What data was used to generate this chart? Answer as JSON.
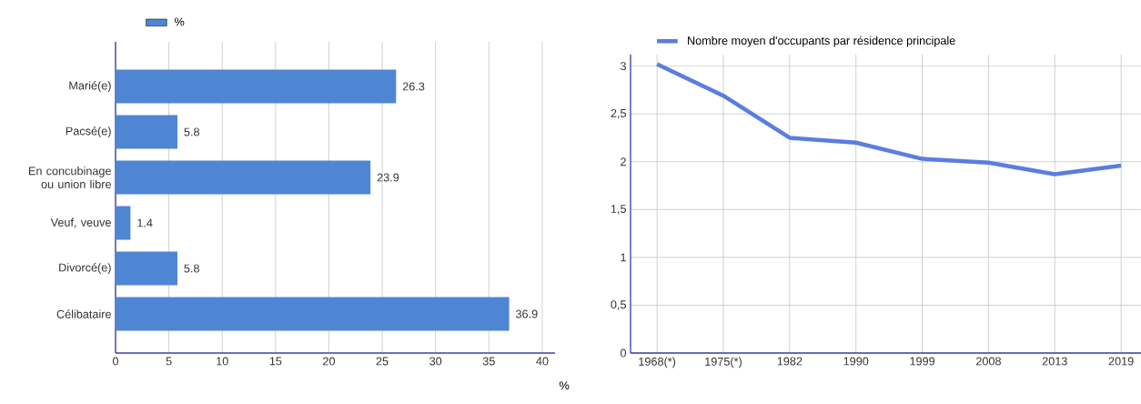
{
  "chart_data": [
    {
      "type": "bar",
      "orientation": "horizontal",
      "categories": [
        "Marié(e)",
        "Pacsé(e)",
        "En concubinage ou union libre",
        "Veuf, veuve",
        "Divorcé(e)",
        "Célibataire"
      ],
      "series": [
        {
          "name": "%",
          "color": "#4f86d4",
          "values": [
            26.3,
            5.8,
            23.9,
            1.4,
            5.8,
            36.9
          ]
        }
      ],
      "xlabel": "%",
      "xlim": [
        0,
        41.2
      ],
      "xticks": [
        0,
        5,
        10,
        15,
        20,
        25,
        30,
        35,
        40
      ],
      "grid": "x",
      "legend": "top",
      "data_labels": true
    },
    {
      "type": "line",
      "categories": [
        "1968(*)",
        "1975(*)",
        "1982",
        "1990",
        "1999",
        "2008",
        "2013",
        "2019"
      ],
      "series": [
        {
          "name": "Nombre moyen d'occupants par résidence principale",
          "color": "#5a7de0",
          "values": [
            3.02,
            2.69,
            2.25,
            2.2,
            2.03,
            1.99,
            1.87,
            1.96
          ]
        }
      ],
      "ylim": [
        0,
        3.12
      ],
      "yticks": [
        0,
        {
          "value": 0.5,
          "label": "0,5"
        },
        1,
        {
          "value": 1.5,
          "label": "1,5"
        },
        2,
        {
          "value": 2.5,
          "label": "2,5"
        },
        3
      ],
      "grid": true,
      "legend": "top left",
      "marker": "none",
      "line_style": "solid"
    }
  ]
}
